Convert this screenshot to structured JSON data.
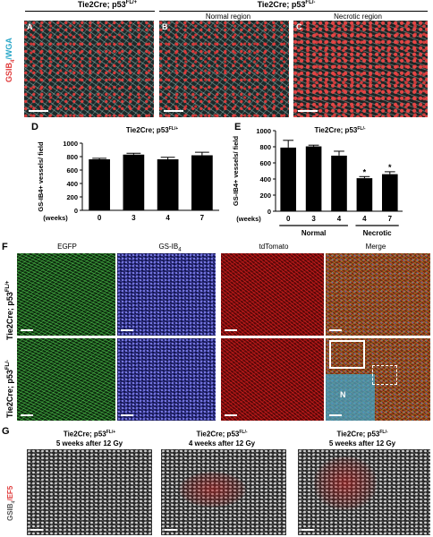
{
  "colors": {
    "red": "#e03c3c",
    "cyan": "#2aa7c8",
    "bar": "#000000",
    "axis": "#000000"
  },
  "panel_letters": {
    "A": "A",
    "B": "B",
    "C": "C",
    "D": "D",
    "E": "E",
    "F": "F",
    "G": "G"
  },
  "top": {
    "ctrl_title": "Tie2Cre; p53FL/+",
    "ctrl_title_main": "Tie2Cre; p53",
    "ctrl_title_sup": "FL/+",
    "ko_title_main": "Tie2Cre; p53",
    "ko_title_sup": "FL/-",
    "normal_region": "Normal region",
    "necrotic_region": "Necrotic region",
    "stain_label_a": "GSIB",
    "stain_label_sub": "4",
    "stain_label_b": "/WGA"
  },
  "chart_d": {
    "title_main": "Tie2Cre; p53",
    "title_sup": "FL/+",
    "ylabel": "GS-IB4+ vessels/ field",
    "weeks_label": "(weeks)",
    "yticks": [
      "0",
      "200",
      "400",
      "600",
      "800",
      "1000"
    ]
  },
  "chart_e": {
    "title_main": "Tie2Cre; p53",
    "title_sup": "FL/-",
    "ylabel": "GS-IB4+ vessels/ field",
    "weeks_label": "(weeks)",
    "yticks": [
      "0",
      "200",
      "400",
      "600",
      "800",
      "1000"
    ],
    "group_normal": "Normal",
    "group_necrotic": "Necrotic",
    "star": "*"
  },
  "chart_data": [
    {
      "type": "bar",
      "categories": [
        "0",
        "3",
        "4",
        "7"
      ],
      "values": [
        760,
        830,
        760,
        820
      ],
      "errors": [
        15,
        20,
        30,
        45
      ],
      "title": "Tie2Cre; p53FL/+",
      "xlabel": "(weeks)",
      "ylabel": "GS-IB4+ vessels/ field",
      "ylim": [
        0,
        1000
      ]
    },
    {
      "type": "bar",
      "categories": [
        "0",
        "3",
        "4",
        "4",
        "7"
      ],
      "groups": [
        "Normal",
        "Normal",
        "Normal",
        "Necrotic",
        "Necrotic"
      ],
      "values": [
        790,
        805,
        690,
        410,
        460
      ],
      "errors": [
        90,
        15,
        55,
        20,
        30
      ],
      "significance": [
        "",
        "",
        "",
        "*",
        "*"
      ],
      "title": "Tie2Cre; p53FL/-",
      "xlabel": "(weeks)",
      "ylabel": "GS-IB4+ vessels/ field",
      "ylim": [
        0,
        1000
      ]
    }
  ],
  "panel_f": {
    "col_egfp": "EGFP",
    "col_gsib_main": "GS-IB",
    "col_gsib_sub": "4",
    "col_tdtomato": "tdTomato",
    "col_merge": "Merge",
    "row1_main": "Tie2Cre; p53",
    "row1_sup": "FL/+",
    "row2_main": "Tie2Cre; p53",
    "row2_sup": "FL/-",
    "necrotic_marker": "N"
  },
  "panel_g": {
    "c1_line1_main": "Tie2Cre; p53",
    "c1_line1_sup": "FL/+",
    "c1_line2": "5 weeks after 12 Gy",
    "c2_line1_main": "Tie2Cre; p53",
    "c2_line1_sup": "FL/-",
    "c2_line2": "4 weeks after 12 Gy",
    "c3_line1_main": "Tie2Cre; p53",
    "c3_line1_sup": "FL/-",
    "c3_line2": "5 weeks after 12 Gy",
    "stain_a": "GSIB",
    "stain_sub": "4",
    "stain_b": "/EF5"
  }
}
